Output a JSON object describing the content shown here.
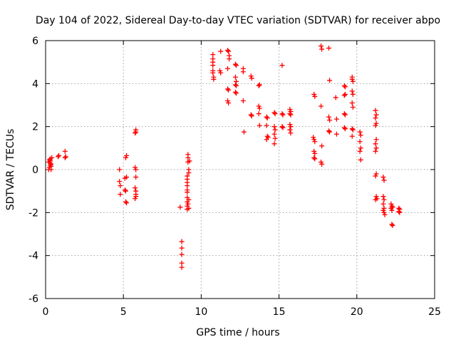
{
  "chart_data": {
    "type": "scatter",
    "title": "Day 104 of 2022, Sidereal Day-to-day VTEC variation (SDTVAR) for receiver abpo",
    "xlabel": "GPS time / hours",
    "ylabel": "SDTVAR / TECUs",
    "xlim": [
      0,
      25
    ],
    "ylim": [
      -6,
      6
    ],
    "x_ticks": [
      0,
      5,
      10,
      15,
      20,
      25
    ],
    "x_tick_labels": [
      "0",
      "5",
      "10",
      "15",
      "20",
      "25"
    ],
    "y_ticks": [
      -6,
      -4,
      -2,
      0,
      2,
      4,
      6
    ],
    "y_tick_labels": [
      "-6",
      "-4",
      "-2",
      "0",
      "2",
      "4",
      "6"
    ],
    "grid": true,
    "marker": "+",
    "marker_color": "#ff0000",
    "series": [
      {
        "name": "SDTVAR",
        "points": [
          [
            0.2,
            0.0
          ],
          [
            0.25,
            0.1
          ],
          [
            0.3,
            0.2
          ],
          [
            0.3,
            0.3
          ],
          [
            0.3,
            0.4
          ],
          [
            0.3,
            0.5
          ],
          [
            0.35,
            0.0
          ],
          [
            0.35,
            0.15
          ],
          [
            0.4,
            0.55
          ],
          [
            0.25,
            0.45
          ],
          [
            0.2,
            0.35
          ],
          [
            0.35,
            0.25
          ],
          [
            0.8,
            0.6
          ],
          [
            0.85,
            0.65
          ],
          [
            1.25,
            0.55
          ],
          [
            1.25,
            0.85
          ],
          [
            1.3,
            0.6
          ],
          [
            4.75,
            0.0
          ],
          [
            4.75,
            -0.55
          ],
          [
            4.8,
            -0.75
          ],
          [
            4.8,
            -1.15
          ],
          [
            5.1,
            -0.4
          ],
          [
            5.1,
            -0.95
          ],
          [
            5.15,
            0.55
          ],
          [
            5.2,
            0.65
          ],
          [
            5.15,
            -1.0
          ],
          [
            5.15,
            -1.5
          ],
          [
            5.2,
            -1.55
          ],
          [
            5.2,
            -0.35
          ],
          [
            5.75,
            1.7
          ],
          [
            5.8,
            1.75
          ],
          [
            5.8,
            1.85
          ],
          [
            5.75,
            0.1
          ],
          [
            5.8,
            0.0
          ],
          [
            5.8,
            -0.35
          ],
          [
            5.75,
            -0.85
          ],
          [
            5.8,
            -1.0
          ],
          [
            5.8,
            -1.15
          ],
          [
            5.8,
            -1.25
          ],
          [
            5.75,
            -1.35
          ],
          [
            8.65,
            -1.75
          ],
          [
            8.75,
            -3.35
          ],
          [
            8.75,
            -3.65
          ],
          [
            8.75,
            -3.95
          ],
          [
            8.75,
            -4.35
          ],
          [
            8.75,
            -4.55
          ],
          [
            9.1,
            -0.3
          ],
          [
            9.1,
            -0.45
          ],
          [
            9.1,
            -0.6
          ],
          [
            9.1,
            -0.75
          ],
          [
            9.1,
            -0.95
          ],
          [
            9.1,
            -1.05
          ],
          [
            9.1,
            -1.3
          ],
          [
            9.1,
            -1.5
          ],
          [
            9.15,
            -1.6
          ],
          [
            9.1,
            -1.7
          ],
          [
            9.1,
            -1.85
          ],
          [
            9.15,
            0.35
          ],
          [
            9.15,
            0.55
          ],
          [
            9.15,
            0.7
          ],
          [
            9.2,
            0.0
          ],
          [
            9.2,
            -0.15
          ],
          [
            9.25,
            0.4
          ],
          [
            9.2,
            -1.4
          ],
          [
            9.2,
            -1.8
          ],
          [
            10.75,
            5.35
          ],
          [
            10.75,
            5.15
          ],
          [
            10.75,
            5.0
          ],
          [
            10.75,
            4.85
          ],
          [
            10.75,
            4.6
          ],
          [
            10.75,
            4.5
          ],
          [
            10.8,
            4.3
          ],
          [
            10.8,
            4.2
          ],
          [
            11.25,
            5.5
          ],
          [
            11.2,
            4.6
          ],
          [
            11.25,
            4.5
          ],
          [
            11.7,
            5.55
          ],
          [
            11.75,
            5.5
          ],
          [
            11.8,
            5.3
          ],
          [
            11.8,
            5.15
          ],
          [
            11.7,
            4.7
          ],
          [
            11.7,
            3.75
          ],
          [
            11.75,
            3.7
          ],
          [
            11.7,
            3.2
          ],
          [
            11.75,
            3.1
          ],
          [
            12.2,
            4.9
          ],
          [
            12.25,
            4.85
          ],
          [
            12.2,
            4.3
          ],
          [
            12.25,
            4.1
          ],
          [
            12.2,
            3.95
          ],
          [
            12.25,
            3.9
          ],
          [
            12.2,
            3.6
          ],
          [
            12.25,
            3.55
          ],
          [
            12.7,
            4.7
          ],
          [
            12.7,
            4.55
          ],
          [
            12.7,
            3.2
          ],
          [
            12.75,
            1.75
          ],
          [
            13.2,
            4.35
          ],
          [
            13.25,
            4.25
          ],
          [
            13.2,
            2.55
          ],
          [
            13.25,
            2.5
          ],
          [
            13.7,
            3.9
          ],
          [
            13.75,
            3.95
          ],
          [
            13.7,
            2.95
          ],
          [
            13.75,
            2.85
          ],
          [
            13.7,
            2.6
          ],
          [
            13.75,
            2.05
          ],
          [
            14.2,
            2.45
          ],
          [
            14.25,
            2.4
          ],
          [
            14.2,
            2.05
          ],
          [
            14.25,
            1.55
          ],
          [
            14.3,
            1.5
          ],
          [
            14.2,
            1.4
          ],
          [
            14.7,
            2.65
          ],
          [
            14.75,
            2.6
          ],
          [
            14.7,
            2.0
          ],
          [
            14.75,
            1.85
          ],
          [
            14.7,
            1.65
          ],
          [
            14.75,
            1.45
          ],
          [
            14.7,
            1.2
          ],
          [
            15.2,
            4.85
          ],
          [
            15.2,
            2.6
          ],
          [
            15.25,
            2.55
          ],
          [
            15.2,
            2.0
          ],
          [
            15.25,
            1.95
          ],
          [
            15.7,
            2.8
          ],
          [
            15.75,
            2.7
          ],
          [
            15.7,
            2.6
          ],
          [
            15.75,
            2.55
          ],
          [
            15.7,
            2.1
          ],
          [
            15.75,
            2.0
          ],
          [
            15.7,
            1.85
          ],
          [
            15.75,
            1.7
          ],
          [
            17.25,
            3.5
          ],
          [
            17.3,
            3.4
          ],
          [
            17.2,
            1.5
          ],
          [
            17.25,
            1.4
          ],
          [
            17.3,
            1.3
          ],
          [
            17.25,
            0.85
          ],
          [
            17.3,
            0.75
          ],
          [
            17.25,
            0.55
          ],
          [
            17.3,
            0.5
          ],
          [
            17.7,
            5.75
          ],
          [
            17.75,
            5.6
          ],
          [
            17.7,
            2.95
          ],
          [
            17.75,
            1.1
          ],
          [
            17.7,
            0.35
          ],
          [
            17.75,
            0.25
          ],
          [
            18.2,
            5.65
          ],
          [
            18.25,
            4.15
          ],
          [
            18.2,
            2.45
          ],
          [
            18.25,
            2.3
          ],
          [
            18.2,
            1.8
          ],
          [
            18.25,
            1.75
          ],
          [
            18.65,
            3.35
          ],
          [
            18.7,
            2.35
          ],
          [
            18.7,
            1.65
          ],
          [
            19.2,
            3.9
          ],
          [
            19.25,
            3.85
          ],
          [
            19.2,
            3.45
          ],
          [
            19.25,
            3.5
          ],
          [
            19.2,
            2.6
          ],
          [
            19.25,
            2.55
          ],
          [
            19.2,
            1.95
          ],
          [
            19.25,
            1.9
          ],
          [
            19.7,
            4.3
          ],
          [
            19.7,
            4.2
          ],
          [
            19.75,
            4.1
          ],
          [
            19.7,
            3.65
          ],
          [
            19.75,
            3.5
          ],
          [
            19.7,
            3.1
          ],
          [
            19.75,
            2.9
          ],
          [
            19.7,
            1.9
          ],
          [
            19.75,
            1.85
          ],
          [
            19.7,
            1.55
          ],
          [
            20.2,
            1.75
          ],
          [
            20.25,
            1.6
          ],
          [
            20.2,
            1.3
          ],
          [
            20.25,
            1.0
          ],
          [
            20.2,
            0.85
          ],
          [
            20.25,
            0.45
          ],
          [
            21.2,
            2.75
          ],
          [
            21.25,
            2.55
          ],
          [
            21.2,
            2.4
          ],
          [
            21.25,
            2.15
          ],
          [
            21.2,
            2.05
          ],
          [
            21.25,
            1.4
          ],
          [
            21.2,
            1.2
          ],
          [
            21.25,
            1.0
          ],
          [
            21.2,
            0.85
          ],
          [
            21.25,
            -0.2
          ],
          [
            21.2,
            -0.3
          ],
          [
            21.25,
            -1.25
          ],
          [
            21.3,
            -1.35
          ],
          [
            21.2,
            -1.4
          ],
          [
            21.7,
            -0.35
          ],
          [
            21.75,
            -0.5
          ],
          [
            21.7,
            -1.25
          ],
          [
            21.75,
            -1.4
          ],
          [
            21.7,
            -1.6
          ],
          [
            21.75,
            -1.8
          ],
          [
            21.7,
            -1.9
          ],
          [
            21.75,
            -2.0
          ],
          [
            21.8,
            -2.1
          ],
          [
            22.2,
            -1.6
          ],
          [
            22.25,
            -1.7
          ],
          [
            22.2,
            -1.8
          ],
          [
            22.25,
            -1.9
          ],
          [
            22.3,
            -1.75
          ],
          [
            22.25,
            -2.55
          ],
          [
            22.3,
            -2.6
          ],
          [
            22.7,
            -1.8
          ],
          [
            22.75,
            -1.85
          ],
          [
            22.7,
            -1.95
          ],
          [
            22.75,
            -2.0
          ]
        ]
      }
    ]
  }
}
